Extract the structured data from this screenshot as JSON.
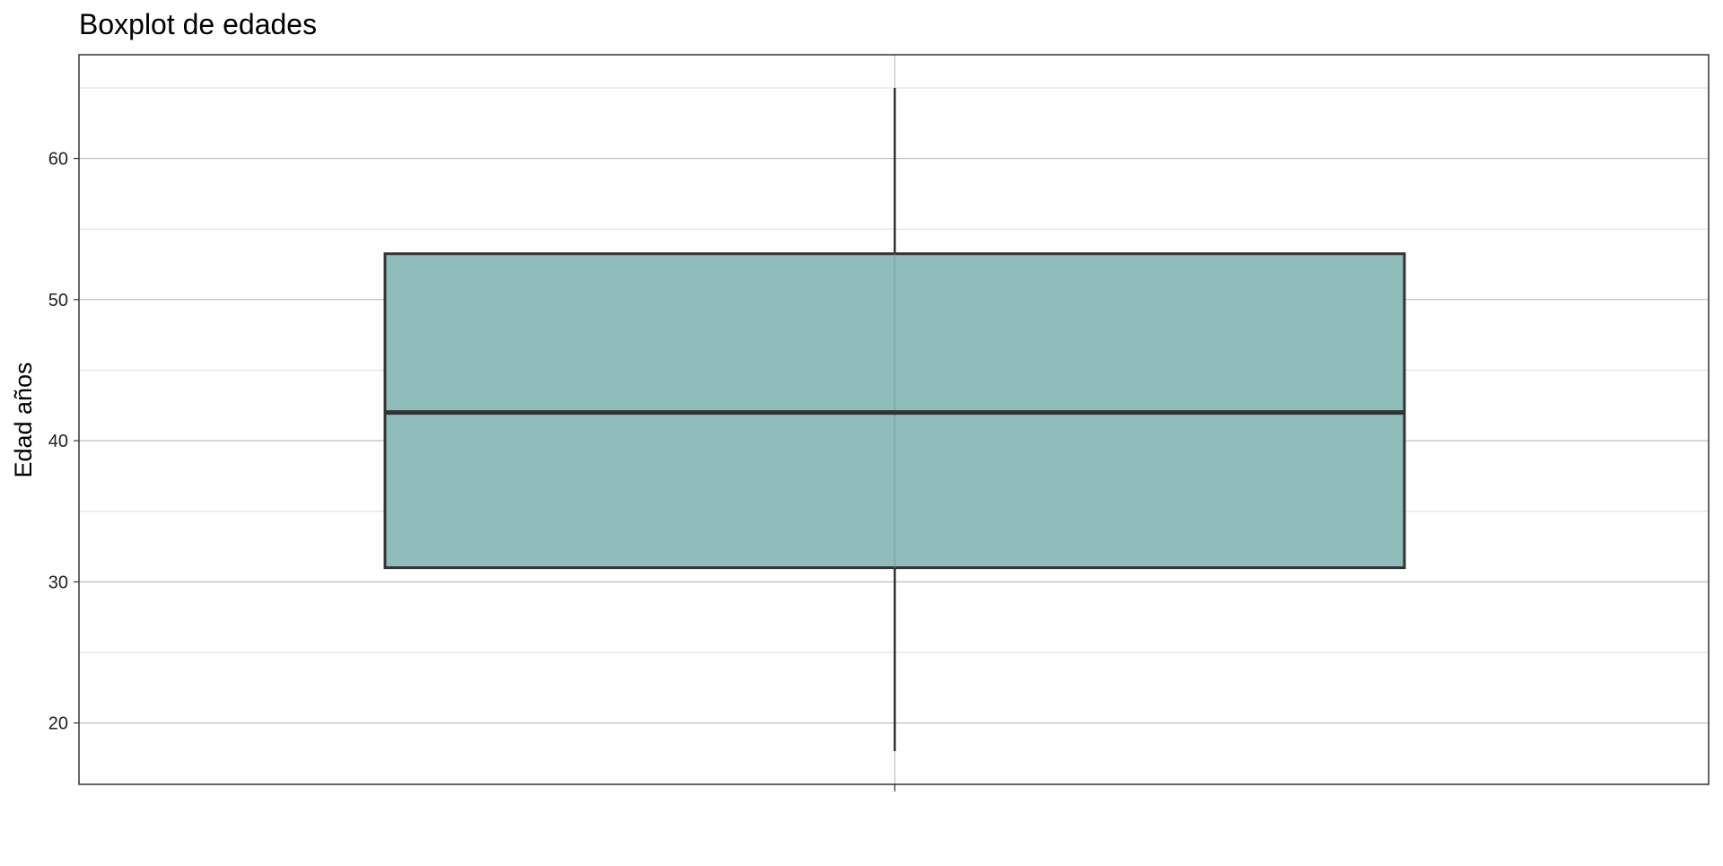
{
  "chart_data": {
    "type": "boxplot",
    "title": "Boxplot de edades",
    "xlabel": "",
    "ylabel": "Edad años",
    "ylim": [
      15.65,
      67.35
    ],
    "yticks": [
      20,
      30,
      40,
      50,
      60
    ],
    "grid": true,
    "box": {
      "min": 18,
      "q1": 31,
      "median": 42,
      "q3": 53.25,
      "max": 65
    },
    "colors": {
      "fill": "#8abbb9",
      "outline": "#333333"
    }
  }
}
